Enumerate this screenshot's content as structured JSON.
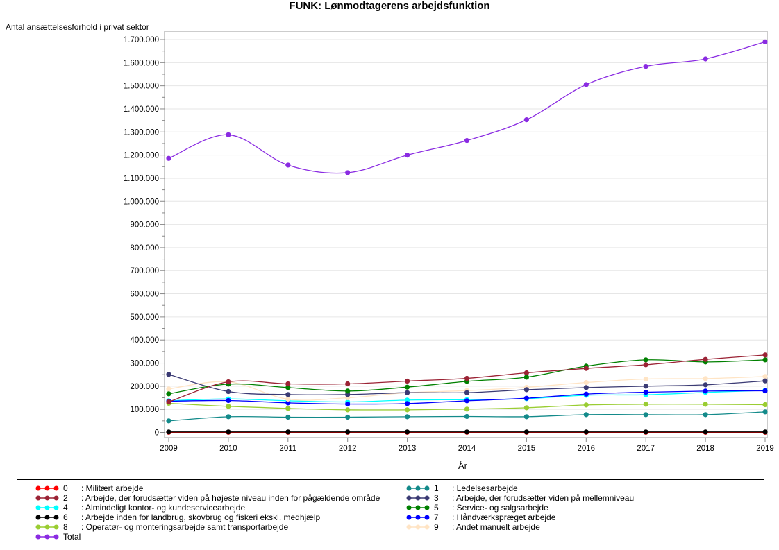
{
  "chart_data": {
    "type": "line",
    "title": "FUNK: Lønmodtagerens arbejdsfunktion",
    "ylabel": "Antal ansættelsesforhold i privat sektor",
    "xlabel": "År",
    "x": [
      2009,
      2010,
      2011,
      2012,
      2013,
      2014,
      2015,
      2016,
      2017,
      2018,
      2019
    ],
    "ylim": [
      0,
      1700000
    ],
    "yticks": [
      "0",
      "100.000",
      "200.000",
      "300.000",
      "400.000",
      "500.000",
      "600.000",
      "700.000",
      "800.000",
      "900.000",
      "1.000.000",
      "1.100.000",
      "1.200.000",
      "1.300.000",
      "1.400.000",
      "1.500.000",
      "1.600.000",
      "1.700.000"
    ],
    "grid": true,
    "legend_position": "bottom",
    "series": [
      {
        "code": "0",
        "name": ": Militært arbejde",
        "color": "#ff0000",
        "values": [
          500,
          500,
          500,
          500,
          500,
          500,
          500,
          500,
          500,
          500,
          500
        ]
      },
      {
        "code": "1",
        "name": ": Ledelsesarbejde",
        "color": "#138a8a",
        "values": [
          50000,
          68000,
          66000,
          66000,
          68000,
          69000,
          68000,
          77000,
          77000,
          77000,
          89000
        ]
      },
      {
        "code": "2",
        "name": ": Arbejde, der forudsætter viden på højeste niveau inden for pågældende område",
        "color": "#9b2335",
        "values": [
          132000,
          219000,
          210000,
          210000,
          222000,
          234000,
          258000,
          277000,
          293000,
          316000,
          335000
        ]
      },
      {
        "code": "3",
        "name": ": Arbejde, der forudsætter viden på mellemniveau",
        "color": "#3b3b74",
        "values": [
          251000,
          177000,
          164000,
          164000,
          172000,
          172000,
          185000,
          194000,
          200000,
          206000,
          223000
        ]
      },
      {
        "code": "4",
        "name": ": Almindeligt kontor- og kundeservicearbejde",
        "color": "#00ffff",
        "values": [
          137000,
          145000,
          137000,
          132000,
          140000,
          142000,
          146000,
          161000,
          163000,
          173000,
          182000
        ]
      },
      {
        "code": "5",
        "name": ": Service- og salgsarbejde",
        "color": "#008000",
        "values": [
          167000,
          209000,
          194000,
          179000,
          196000,
          221000,
          239000,
          287000,
          314000,
          305000,
          314000
        ]
      },
      {
        "code": "6",
        "name": ": Arbejde inden for landbrug, skovbrug og fiskeri ekskl. medhjælp",
        "color": "#000000",
        "values": [
          2000,
          2000,
          2000,
          2000,
          2000,
          2000,
          2000,
          2000,
          2000,
          2000,
          2000
        ]
      },
      {
        "code": "7",
        "name": ": Håndværkspræget arbejde",
        "color": "#0000ff",
        "values": [
          135000,
          138000,
          128000,
          123000,
          125000,
          137000,
          148000,
          166000,
          174000,
          179000,
          180000
        ]
      },
      {
        "code": "8",
        "name": ": Operatør- og monteringsarbejde samt transportarbejde",
        "color": "#9acd32",
        "values": [
          126000,
          113000,
          104000,
          98000,
          98000,
          101000,
          107000,
          119000,
          122000,
          122000,
          120000
        ]
      },
      {
        "code": "9",
        "name": ": Andet manuelt arbejde",
        "color": "#ffe4c4",
        "values": [
          188000,
          219000,
          144000,
          150000,
          172000,
          181000,
          195000,
          216000,
          231000,
          233000,
          242000
        ]
      },
      {
        "code": "",
        "name": "Total",
        "color": "#8a2be2",
        "values": [
          1186000,
          1288000,
          1157000,
          1124000,
          1200000,
          1263000,
          1353000,
          1505000,
          1584000,
          1616000,
          1690000
        ]
      }
    ]
  }
}
